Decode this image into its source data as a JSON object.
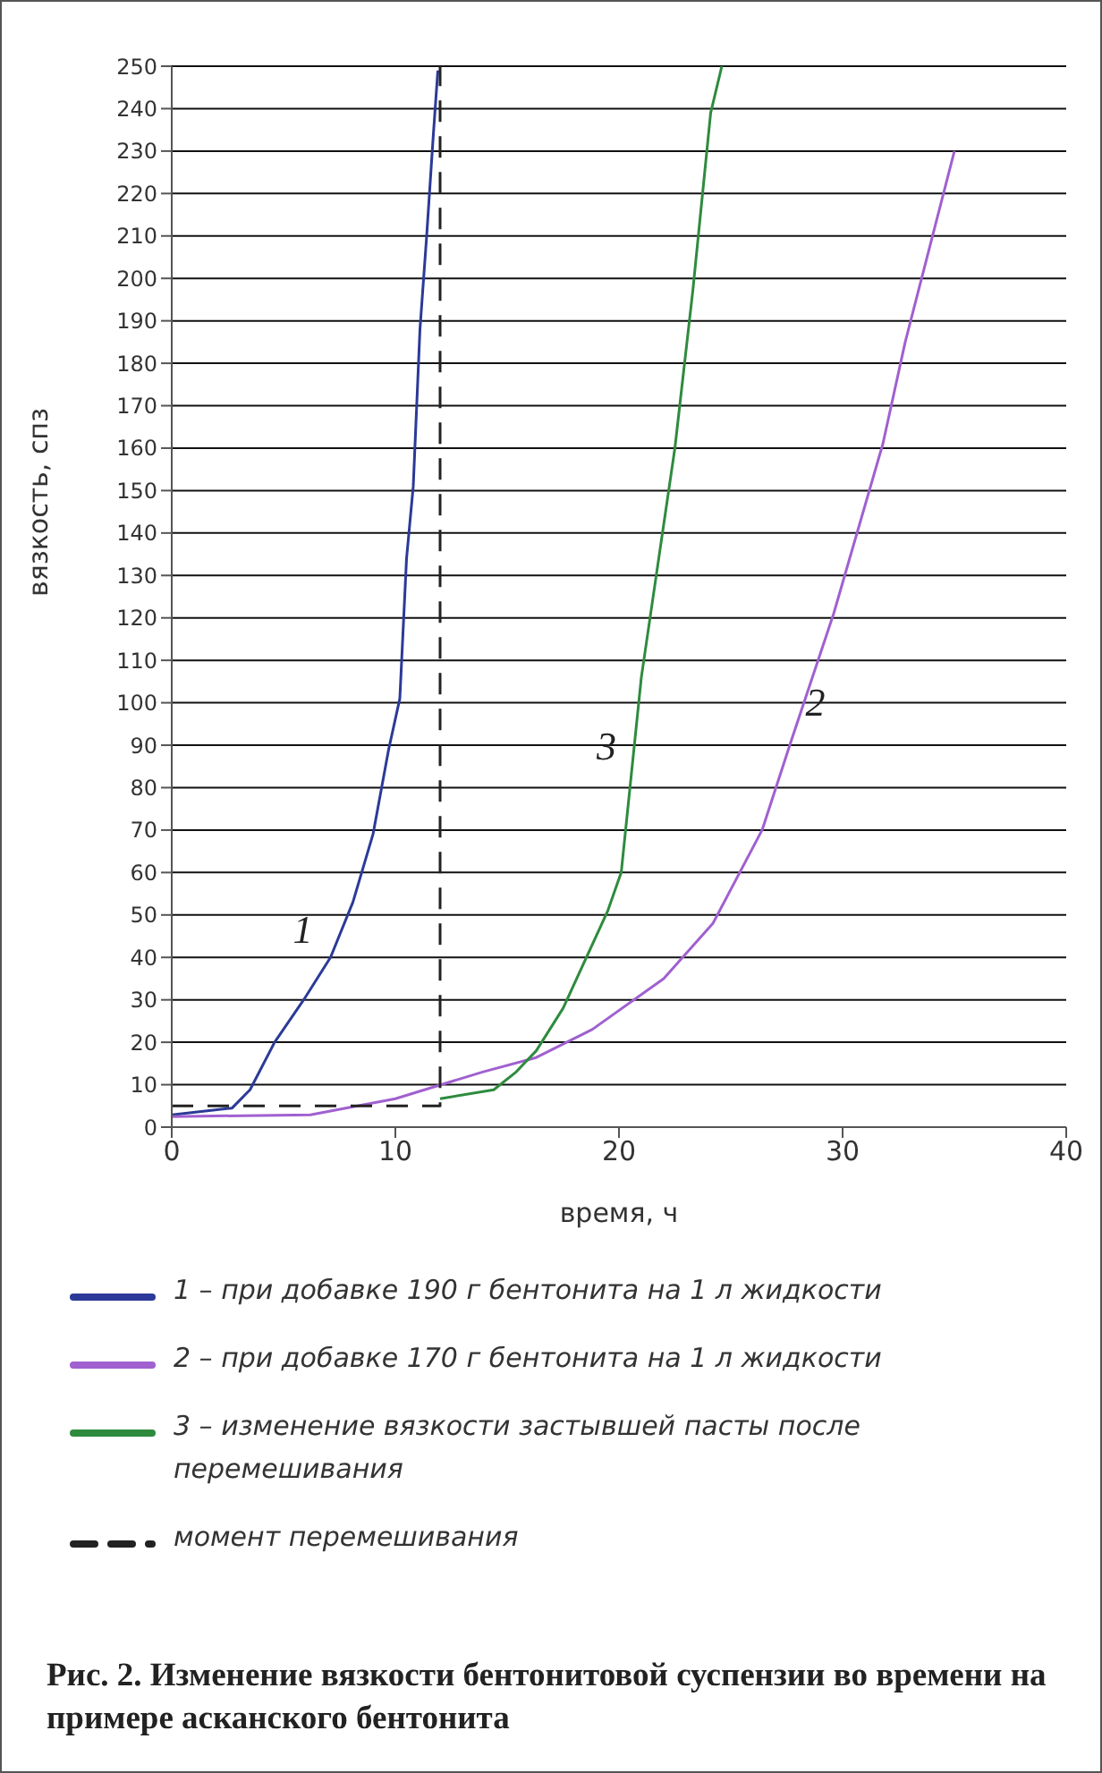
{
  "chart_data": {
    "type": "line",
    "title": "Рис. 2. Изменение вязкости бентонитовой суспензии во времени на примере асканского бентонита",
    "xlabel": "время,  ч",
    "ylabel": "вязкость,  спз",
    "xlim": [
      0,
      40
    ],
    "xticks": [
      0,
      10,
      20,
      30,
      40
    ],
    "ylim": [
      0,
      250
    ],
    "yticks": [
      0,
      10,
      20,
      30,
      40,
      50,
      60,
      70,
      80,
      90,
      100,
      110,
      120,
      130,
      140,
      150,
      160,
      170,
      180,
      190,
      200,
      210,
      220,
      230,
      240,
      250
    ],
    "grid": "y",
    "legend": "bottom",
    "marker": "none",
    "line_style": "solid",
    "series": [
      {
        "name": "1 – при добавке 190 г бентонита на 1 л жидкости",
        "color": "#2b3a98",
        "x": [
          0,
          2.7,
          3.5,
          4.6,
          5.9,
          7.1,
          8.1,
          9.0,
          9.7,
          10.2,
          10.5,
          10.8,
          11.1,
          11.4,
          11.7,
          11.9
        ],
        "values": [
          2.9,
          4.5,
          8.8,
          20,
          30,
          40,
          53,
          69,
          89,
          101,
          134,
          151,
          188,
          210,
          234,
          249
        ]
      },
      {
        "name": "2 – при добавке 170 г бентонита на 1 л жидкости",
        "color": "#a060d0",
        "x": [
          0,
          6.2,
          10,
          13.9,
          16.3,
          18.8,
          22.0,
          24.2,
          26.4,
          27.7,
          29.6,
          31.8,
          32.8,
          35.0
        ],
        "values": [
          2.5,
          2.9,
          6.7,
          13,
          16.4,
          23,
          35,
          48,
          70,
          91,
          121,
          161,
          185,
          230
        ]
      },
      {
        "name": "3 – изменение вязкости застывшей пасты после перемешивания",
        "color": "#2e8b3e",
        "x": [
          12,
          14.4,
          15.4,
          16.3,
          17.5,
          19.5,
          20.1,
          21.0,
          22.5,
          23.3,
          24.1,
          24.6
        ],
        "values": [
          6.7,
          8.8,
          13,
          18,
          28,
          51,
          60,
          106,
          160,
          197,
          239,
          250
        ]
      },
      {
        "name": "момент перемешивания",
        "color": "#222222",
        "line_style": "dashed",
        "x": [
          0,
          12,
          12
        ],
        "values": [
          5,
          5,
          250
        ]
      }
    ],
    "annotations": [
      {
        "text": "1",
        "x": 7.1,
        "y": 40
      },
      {
        "text": "3",
        "x": 21.0,
        "y": 106
      },
      {
        "text": "2",
        "x": 27.7,
        "y": 91
      }
    ]
  }
}
